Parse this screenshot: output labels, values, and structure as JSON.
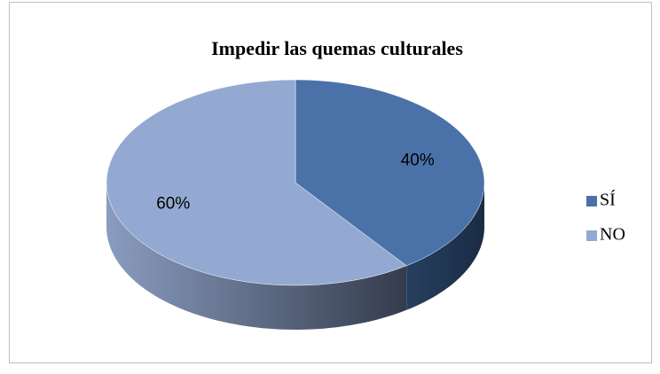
{
  "chart_data": {
    "type": "pie",
    "title": "Impedir las quemas culturales",
    "categories": [
      "SÍ",
      "NO"
    ],
    "values": [
      40,
      60
    ],
    "value_labels": [
      "40%",
      "60%"
    ],
    "colors": [
      "#4a72a8",
      "#93a9d1"
    ],
    "legend": "right"
  }
}
